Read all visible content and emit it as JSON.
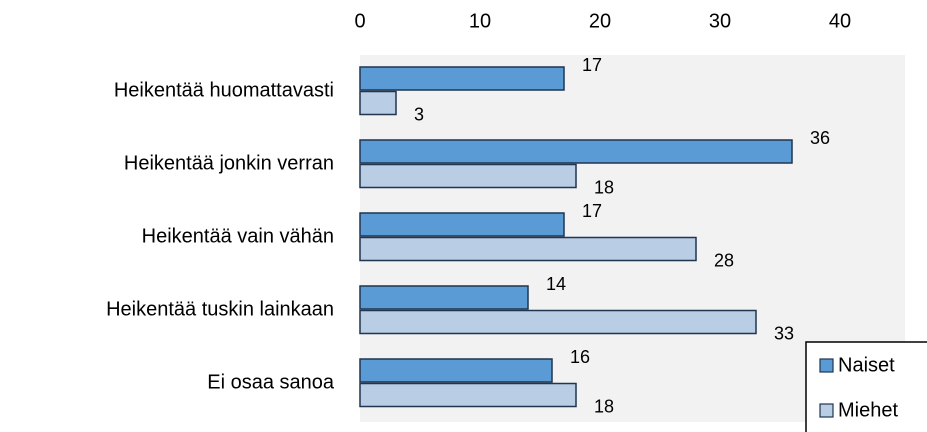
{
  "chart_data": {
    "type": "bar",
    "orientation": "horizontal",
    "categories": [
      "Heikentää huomattavasti",
      "Heikentää jonkin verran",
      "Heikentää vain vähän",
      "Heikentää tuskin lainkaan",
      "Ei osaa sanoa"
    ],
    "series": [
      {
        "name": "Naiset",
        "color": "#5b9bd5",
        "values": [
          17,
          36,
          17,
          14,
          16
        ]
      },
      {
        "name": "Miehet",
        "color": "#b9cde5",
        "values": [
          3,
          18,
          28,
          33,
          18
        ]
      }
    ],
    "xlim": [
      0,
      45
    ],
    "xticks": [
      0,
      10,
      20,
      30,
      40
    ],
    "legend": "lower right"
  }
}
